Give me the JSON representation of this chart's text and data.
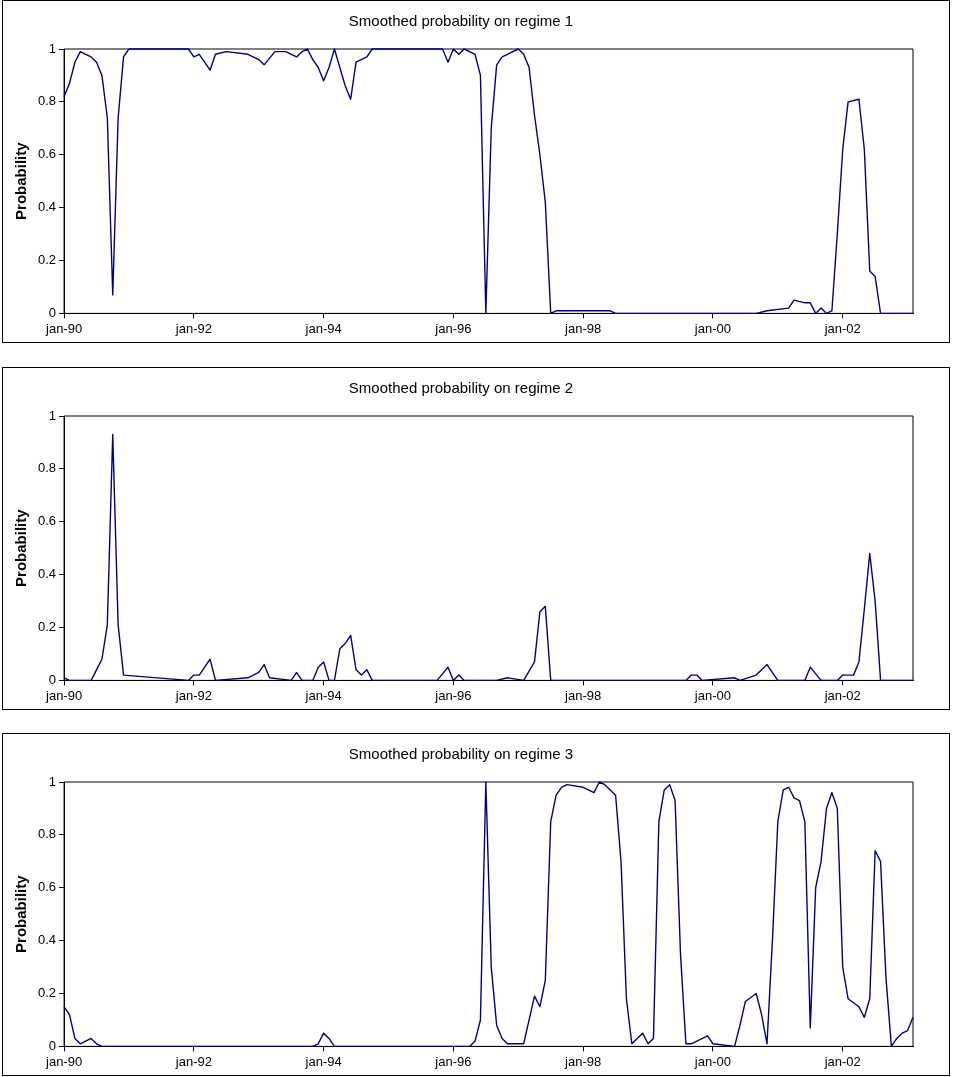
{
  "chart_data": [
    {
      "type": "line",
      "title": "Smoothed probability on regime 1",
      "ylabel": "Probability",
      "xlim": [
        "1990-01",
        "2003-02"
      ],
      "ylim": [
        0,
        1
      ],
      "yticks": [
        0,
        0.2,
        0.4,
        0.6,
        0.8,
        1
      ],
      "grid": false,
      "legend": false,
      "xticks": [
        {
          "value": "1990-01",
          "label": "jan-90"
        },
        {
          "value": "1992-01",
          "label": "jan-92"
        },
        {
          "value": "1994-01",
          "label": "jan-94"
        },
        {
          "value": "1996-01",
          "label": "jan-96"
        },
        {
          "value": "1998-01",
          "label": "jan-98"
        },
        {
          "value": "2000-01",
          "label": "jan-00"
        },
        {
          "value": "2002-01",
          "label": "jan-02"
        }
      ],
      "series": [
        {
          "color": "#000080",
          "x": [
            "1990-01",
            "1990-02",
            "1990-03",
            "1990-04",
            "1990-05",
            "1990-06",
            "1990-07",
            "1990-08",
            "1990-09",
            "1990-10",
            "1990-11",
            "1990-12",
            "1991-01",
            "1991-12",
            "1992-01",
            "1992-02",
            "1992-04",
            "1992-05",
            "1992-07",
            "1992-11",
            "1993-01",
            "1993-02",
            "1993-04",
            "1993-06",
            "1993-08",
            "1993-09",
            "1993-10",
            "1993-11",
            "1993-12",
            "1994-01",
            "1994-02",
            "1994-03",
            "1994-04",
            "1994-05",
            "1994-06",
            "1994-07",
            "1994-09",
            "1994-10",
            "1995-11",
            "1995-12",
            "1996-01",
            "1996-02",
            "1996-03",
            "1996-05",
            "1996-06",
            "1996-07",
            "1996-08",
            "1996-09",
            "1996-10",
            "1996-11",
            "1997-01",
            "1997-02",
            "1997-03",
            "1997-04",
            "1997-05",
            "1997-06",
            "1997-07",
            "1997-08",
            "1998-01",
            "1998-06",
            "1998-07",
            "2000-09",
            "2000-11",
            "2001-03",
            "2001-04",
            "2001-06",
            "2001-07",
            "2001-08",
            "2001-09",
            "2001-10",
            "2001-11",
            "2001-12",
            "2002-01",
            "2002-02",
            "2002-04",
            "2002-05",
            "2002-06",
            "2002-07",
            "2002-08",
            "2003-02"
          ],
          "values": [
            0.82,
            0.87,
            0.95,
            0.99,
            0.98,
            0.97,
            0.95,
            0.9,
            0.74,
            0.07,
            0.74,
            0.97,
            1,
            1,
            0.97,
            0.98,
            0.92,
            0.98,
            0.99,
            0.98,
            0.96,
            0.94,
            0.99,
            0.99,
            0.97,
            0.99,
            1,
            0.96,
            0.93,
            0.88,
            0.93,
            1,
            0.93,
            0.86,
            0.81,
            0.95,
            0.97,
            1,
            1,
            0.95,
            1,
            0.98,
            1,
            0.98,
            0.9,
            0,
            0.7,
            0.94,
            0.97,
            0.98,
            1,
            0.98,
            0.93,
            0.75,
            0.6,
            0.42,
            0,
            0.01,
            0.01,
            0.01,
            0,
            0,
            0.01,
            0.02,
            0.05,
            0.04,
            0.04,
            0,
            0.02,
            0,
            0.01,
            0.3,
            0.62,
            0.8,
            0.81,
            0.62,
            0.16,
            0.14,
            0,
            0
          ]
        }
      ]
    },
    {
      "type": "line",
      "title": "Smoothed probability on regime 2",
      "ylabel": "Probability",
      "xlim": [
        "1990-01",
        "2003-02"
      ],
      "ylim": [
        0,
        1
      ],
      "yticks": [
        0,
        0.2,
        0.4,
        0.6,
        0.8,
        1
      ],
      "grid": false,
      "legend": false,
      "xticks": [
        {
          "value": "1990-01",
          "label": "jan-90"
        },
        {
          "value": "1992-01",
          "label": "jan-92"
        },
        {
          "value": "1994-01",
          "label": "jan-94"
        },
        {
          "value": "1996-01",
          "label": "jan-96"
        },
        {
          "value": "1998-01",
          "label": "jan-98"
        },
        {
          "value": "2000-01",
          "label": "jan-00"
        },
        {
          "value": "2002-01",
          "label": "jan-02"
        }
      ],
      "series": [
        {
          "color": "#000080",
          "x": [
            "1990-01",
            "1990-02",
            "1990-06",
            "1990-07",
            "1990-08",
            "1990-09",
            "1990-10",
            "1990-11",
            "1990-12",
            "1991-12",
            "1992-01",
            "1992-02",
            "1992-03",
            "1992-04",
            "1992-05",
            "1992-11",
            "1993-01",
            "1993-02",
            "1993-03",
            "1993-07",
            "1993-08",
            "1993-09",
            "1993-11",
            "1993-12",
            "1994-01",
            "1994-02",
            "1994-03",
            "1994-04",
            "1994-05",
            "1994-06",
            "1994-07",
            "1994-08",
            "1994-09",
            "1994-10",
            "1995-10",
            "1995-12",
            "1996-01",
            "1996-02",
            "1996-03",
            "1996-09",
            "1996-11",
            "1997-02",
            "1997-04",
            "1997-05",
            "1997-06",
            "1997-07",
            "1999-08",
            "1999-09",
            "1999-10",
            "1999-11",
            "2000-05",
            "2000-06",
            "2000-09",
            "2000-11",
            "2001-01",
            "2001-06",
            "2001-07",
            "2001-09",
            "2001-12",
            "2002-01",
            "2002-03",
            "2002-04",
            "2002-05",
            "2002-06",
            "2002-07",
            "2002-08",
            "2003-02"
          ],
          "values": [
            0.01,
            0,
            0,
            0.04,
            0.08,
            0.21,
            0.93,
            0.21,
            0.02,
            0,
            0.02,
            0.02,
            0.05,
            0.08,
            0,
            0.01,
            0.03,
            0.06,
            0.01,
            0,
            0.03,
            0,
            0,
            0.05,
            0.07,
            0,
            0,
            0.12,
            0.14,
            0.17,
            0.04,
            0.02,
            0.04,
            0,
            0,
            0.05,
            0,
            0.02,
            0,
            0,
            0.01,
            0,
            0.07,
            0.26,
            0.28,
            0,
            0,
            0.02,
            0.02,
            0,
            0.01,
            0,
            0.02,
            0.06,
            0,
            0,
            0.05,
            0,
            0,
            0.02,
            0.02,
            0.07,
            0.27,
            0.48,
            0.3,
            0,
            0
          ]
        }
      ]
    },
    {
      "type": "line",
      "title": "Smoothed probability on regime 3",
      "ylabel": "Probability",
      "xlim": [
        "1990-01",
        "2003-02"
      ],
      "ylim": [
        0,
        1
      ],
      "yticks": [
        0,
        0.2,
        0.4,
        0.6,
        0.8,
        1
      ],
      "grid": false,
      "legend": false,
      "xticks": [
        {
          "value": "1990-01",
          "label": "jan-90"
        },
        {
          "value": "1992-01",
          "label": "jan-92"
        },
        {
          "value": "1994-01",
          "label": "jan-94"
        },
        {
          "value": "1996-01",
          "label": "jan-96"
        },
        {
          "value": "1998-01",
          "label": "jan-98"
        },
        {
          "value": "2000-01",
          "label": "jan-00"
        },
        {
          "value": "2002-01",
          "label": "jan-02"
        }
      ],
      "series": [
        {
          "color": "#000080",
          "x": [
            "1990-01",
            "1990-02",
            "1990-03",
            "1990-04",
            "1990-05",
            "1990-06",
            "1990-07",
            "1990-08",
            "1993-11",
            "1993-12",
            "1994-01",
            "1994-02",
            "1994-03",
            "1996-04",
            "1996-05",
            "1996-06",
            "1996-07",
            "1996-08",
            "1996-09",
            "1996-10",
            "1996-11",
            "1997-02",
            "1997-03",
            "1997-04",
            "1997-05",
            "1997-06",
            "1997-07",
            "1997-08",
            "1997-09",
            "1997-10",
            "1998-01",
            "1998-03",
            "1998-04",
            "1998-05",
            "1998-07",
            "1998-08",
            "1998-09",
            "1998-10",
            "1998-11",
            "1998-12",
            "1999-01",
            "1999-02",
            "1999-03",
            "1999-04",
            "1999-05",
            "1999-06",
            "1999-07",
            "1999-08",
            "1999-09",
            "1999-12",
            "2000-01",
            "2000-05",
            "2000-06",
            "2000-07",
            "2000-09",
            "2000-10",
            "2000-11",
            "2000-12",
            "2001-01",
            "2001-02",
            "2001-03",
            "2001-04",
            "2001-05",
            "2001-06",
            "2001-07",
            "2001-08",
            "2001-09",
            "2001-10",
            "2001-11",
            "2001-12",
            "2002-01",
            "2002-02",
            "2002-04",
            "2002-05",
            "2002-06",
            "2002-07",
            "2002-08",
            "2002-09",
            "2002-10",
            "2002-11",
            "2002-12",
            "2003-01",
            "2003-02"
          ],
          "values": [
            0.15,
            0.12,
            0.03,
            0.01,
            0.02,
            0.03,
            0.01,
            0,
            0,
            0.01,
            0.05,
            0.03,
            0,
            0,
            0.02,
            0.1,
            1,
            0.3,
            0.08,
            0.03,
            0.01,
            0.01,
            0.1,
            0.19,
            0.15,
            0.25,
            0.85,
            0.95,
            0.98,
            0.99,
            0.98,
            0.96,
            1,
            0.99,
            0.95,
            0.7,
            0.18,
            0.01,
            0.03,
            0.05,
            0.01,
            0.03,
            0.85,
            0.97,
            0.99,
            0.93,
            0.35,
            0.01,
            0.01,
            0.04,
            0.01,
            0,
            0.08,
            0.17,
            0.2,
            0.12,
            0.01,
            0.4,
            0.85,
            0.97,
            0.98,
            0.94,
            0.93,
            0.85,
            0.07,
            0.6,
            0.7,
            0.9,
            0.96,
            0.9,
            0.3,
            0.18,
            0.15,
            0.11,
            0.18,
            0.74,
            0.7,
            0.26,
            0,
            0.03,
            0.05,
            0.06,
            0.11
          ]
        }
      ]
    }
  ]
}
